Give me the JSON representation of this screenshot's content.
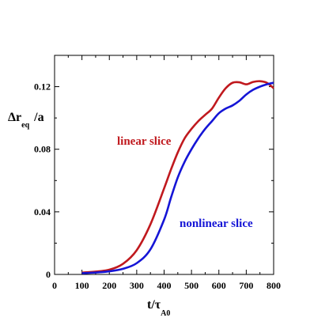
{
  "chart_data": {
    "type": "line",
    "xlabel": {
      "main": "t/τ",
      "sub": "A0"
    },
    "ylabel": {
      "pre": "Δr",
      "sub": "eq",
      "post": "/a"
    },
    "xlim": [
      0,
      800
    ],
    "ylim": [
      0,
      0.14
    ],
    "xticks": [
      0,
      100,
      200,
      300,
      400,
      500,
      600,
      700,
      800
    ],
    "yticks": [
      0,
      0.04,
      0.08,
      0.12
    ],
    "ytick_labels": [
      "0",
      "0.04",
      "0.08",
      "0.12"
    ],
    "grid": false,
    "series": [
      {
        "name": "linear slice",
        "color": "#c0191e",
        "x": [
          100,
          150,
          200,
          250,
          300,
          350,
          400,
          425,
          450,
          475,
          500,
          525,
          550,
          575,
          600,
          625,
          650,
          675,
          700,
          725,
          750,
          775,
          800
        ],
        "y": [
          0.0012,
          0.0018,
          0.003,
          0.0068,
          0.0155,
          0.032,
          0.055,
          0.067,
          0.078,
          0.087,
          0.093,
          0.098,
          0.102,
          0.106,
          0.113,
          0.119,
          0.1225,
          0.1228,
          0.1215,
          0.123,
          0.1235,
          0.1225,
          0.119
        ]
      },
      {
        "name": "nonlinear slice",
        "color": "#1515d6",
        "x": [
          100,
          150,
          200,
          250,
          300,
          350,
          400,
          425,
          450,
          475,
          500,
          525,
          550,
          575,
          600,
          625,
          650,
          675,
          700,
          725,
          750,
          775,
          800
        ],
        "y": [
          0.0008,
          0.0012,
          0.002,
          0.0036,
          0.0072,
          0.016,
          0.035,
          0.049,
          0.062,
          0.072,
          0.08,
          0.087,
          0.093,
          0.098,
          0.103,
          0.106,
          0.108,
          0.111,
          0.115,
          0.118,
          0.12,
          0.1215,
          0.1225
        ]
      }
    ]
  }
}
